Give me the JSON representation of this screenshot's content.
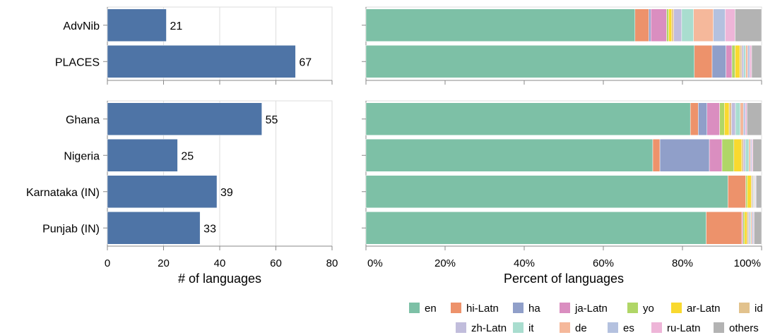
{
  "chart_data": [
    {
      "type": "bar",
      "orientation": "horizontal",
      "xlabel": "# of languages",
      "xlim": [
        0,
        80
      ],
      "xticks": [
        0,
        20,
        40,
        60,
        80
      ],
      "grid": true,
      "bar_color": "#4e74a6",
      "groups": [
        {
          "categories": [
            "AdvNib",
            "PLACES"
          ],
          "values": [
            21,
            67
          ]
        },
        {
          "categories": [
            "Ghana",
            "Nigeria",
            "Karnataka (IN)",
            "Punjab (IN)"
          ],
          "values": [
            55,
            25,
            39,
            33
          ]
        }
      ]
    },
    {
      "type": "bar",
      "orientation": "horizontal",
      "stacked": true,
      "xlabel": "Percent of languages",
      "xlim": [
        0,
        100
      ],
      "xticks": [
        "0%",
        "20%",
        "40%",
        "60%",
        "80%",
        "100%"
      ],
      "xtick_values": [
        0,
        20,
        40,
        60,
        80,
        100
      ],
      "legend_position": "bottom-right",
      "series": [
        {
          "name": "en",
          "color": "#7dc0a6"
        },
        {
          "name": "hi-Latn",
          "color": "#ed926b"
        },
        {
          "name": "ha",
          "color": "#909fc9"
        },
        {
          "name": "ja-Latn",
          "color": "#da8ec0"
        },
        {
          "name": "yo",
          "color": "#b0d667"
        },
        {
          "name": "ar-Latn",
          "color": "#f9d92f"
        },
        {
          "name": "id",
          "color": "#e2c28d"
        },
        {
          "name": "zh-Latn",
          "color": "#c1bddc"
        },
        {
          "name": "it",
          "color": "#a9ddcf"
        },
        {
          "name": "de",
          "color": "#f5b89b"
        },
        {
          "name": "es",
          "color": "#b4c1df"
        },
        {
          "name": "ru-Latn",
          "color": "#eeb5d8"
        },
        {
          "name": "others",
          "color": "#b3b3b3"
        }
      ],
      "groups": [
        {
          "categories": [
            "AdvNib",
            "PLACES"
          ],
          "rows": [
            [
              68,
              3.5,
              0.5,
              4,
              0.5,
              0.8,
              0.5,
              2,
              3,
              5,
              3,
              2.5,
              6.7
            ],
            [
              83,
              4.5,
              3.5,
              1.5,
              0.8,
              1.2,
              0.5,
              0.5,
              0.5,
              0.5,
              0.5,
              0.5,
              2.5
            ]
          ]
        },
        {
          "categories": [
            "Ghana",
            "Nigeria",
            "Karnataka (IN)",
            "Punjab (IN)"
          ],
          "rows": [
            [
              82,
              2,
              2.2,
              3.2,
              1.2,
              1.2,
              0.6,
              1,
              1.2,
              0.8,
              0.5,
              0.4,
              3.7
            ],
            [
              72.5,
              1.8,
              12.5,
              3.2,
              3,
              2,
              0.4,
              0.5,
              0.9,
              0.4,
              0.3,
              0.3,
              2.2
            ],
            [
              91.5,
              4.5,
              0,
              0,
              0.4,
              1,
              0.3,
              0.2,
              0.2,
              0.2,
              0.2,
              0.1,
              1.4
            ],
            [
              86,
              9,
              0,
              0.3,
              0.4,
              0.6,
              0.4,
              0.3,
              0.3,
              0.3,
              0.3,
              0.2,
              1.9
            ]
          ]
        }
      ]
    }
  ]
}
